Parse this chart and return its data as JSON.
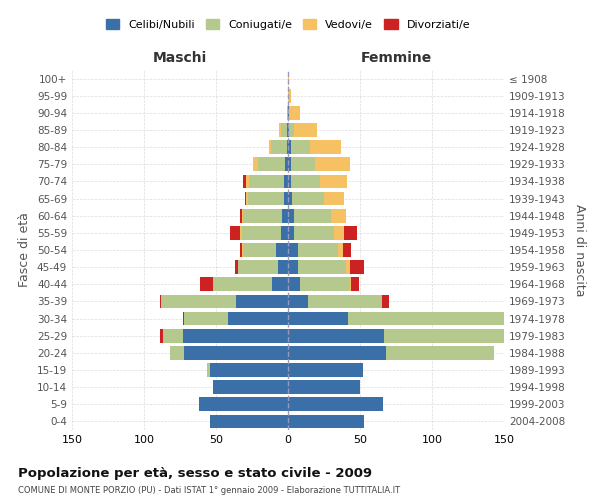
{
  "age_groups": [
    "0-4",
    "5-9",
    "10-14",
    "15-19",
    "20-24",
    "25-29",
    "30-34",
    "35-39",
    "40-44",
    "45-49",
    "50-54",
    "55-59",
    "60-64",
    "65-69",
    "70-74",
    "75-79",
    "80-84",
    "85-89",
    "90-94",
    "95-99",
    "100+"
  ],
  "birth_years": [
    "2004-2008",
    "1999-2003",
    "1994-1998",
    "1989-1993",
    "1984-1988",
    "1979-1983",
    "1974-1978",
    "1969-1973",
    "1964-1968",
    "1959-1963",
    "1954-1958",
    "1949-1953",
    "1944-1948",
    "1939-1943",
    "1934-1938",
    "1929-1933",
    "1924-1928",
    "1919-1923",
    "1914-1918",
    "1909-1913",
    "≤ 1908"
  ],
  "colors": {
    "celibi": "#3a6fa8",
    "coniugati": "#b5c98e",
    "vedovi": "#f5c163",
    "divorziati": "#cc2222"
  },
  "males": {
    "celibi": [
      54,
      62,
      52,
      54,
      72,
      73,
      42,
      36,
      11,
      7,
      8,
      5,
      4,
      3,
      3,
      2,
      1,
      1,
      0,
      0,
      0
    ],
    "coniugati": [
      0,
      0,
      0,
      2,
      10,
      14,
      30,
      52,
      41,
      28,
      23,
      27,
      27,
      25,
      24,
      19,
      11,
      4,
      1,
      0,
      0
    ],
    "vedovi": [
      0,
      0,
      0,
      0,
      0,
      0,
      0,
      0,
      0,
      0,
      1,
      1,
      1,
      1,
      2,
      3,
      1,
      1,
      0,
      0,
      0
    ],
    "divorziati": [
      0,
      0,
      0,
      0,
      0,
      2,
      1,
      1,
      9,
      2,
      1,
      7,
      1,
      1,
      2,
      0,
      0,
      0,
      0,
      0,
      0
    ]
  },
  "females": {
    "celibi": [
      53,
      66,
      50,
      52,
      68,
      67,
      42,
      14,
      8,
      7,
      7,
      4,
      4,
      3,
      2,
      2,
      2,
      1,
      1,
      0,
      0
    ],
    "coniugati": [
      0,
      0,
      0,
      0,
      75,
      95,
      127,
      51,
      35,
      33,
      28,
      28,
      26,
      22,
      20,
      17,
      13,
      3,
      0,
      0,
      0
    ],
    "vedovi": [
      0,
      0,
      0,
      0,
      0,
      0,
      0,
      0,
      1,
      3,
      3,
      7,
      10,
      14,
      19,
      24,
      22,
      16,
      7,
      2,
      1
    ],
    "divorziati": [
      0,
      0,
      0,
      0,
      0,
      0,
      1,
      5,
      5,
      10,
      6,
      9,
      0,
      0,
      0,
      0,
      0,
      0,
      0,
      0,
      0
    ]
  },
  "title": "Popolazione per età, sesso e stato civile - 2009",
  "subtitle": "COMUNE DI MONTE PORZIO (PU) - Dati ISTAT 1° gennaio 2009 - Elaborazione TUTTITALIA.IT",
  "xlabel_left": "Maschi",
  "xlabel_right": "Femmine",
  "ylabel_left": "Fasce di età",
  "ylabel_right": "Anni di nascita",
  "xlim": 150,
  "bg_color": "#ffffff",
  "grid_color": "#cccccc",
  "legend_labels": [
    "Celibi/Nubili",
    "Coniugati/e",
    "Vedovi/e",
    "Divorziati/e"
  ]
}
